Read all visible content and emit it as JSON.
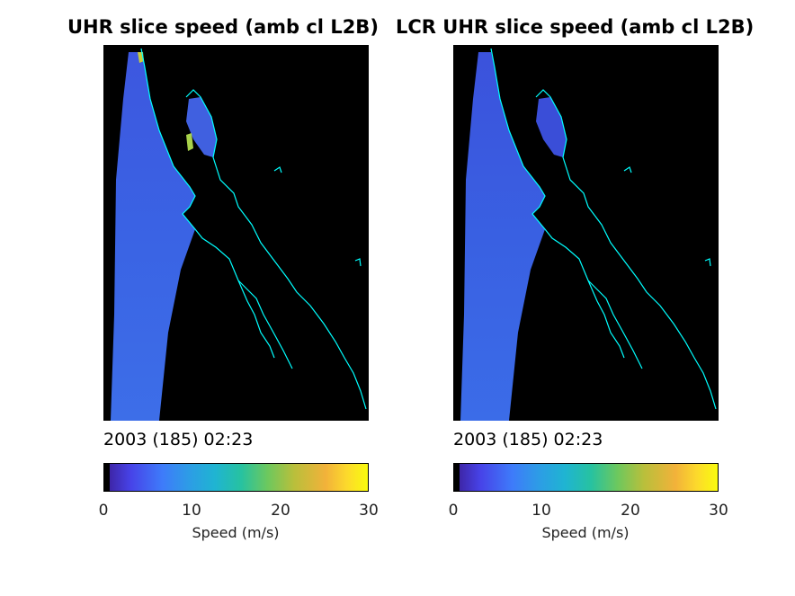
{
  "chart_data": [
    {
      "type": "heatmap",
      "title": "UHR slice speed (amb cl L2B)",
      "timestamp": "2003 (185) 02:23",
      "colorbar": {
        "label": "Speed (m/s)",
        "range": [
          0,
          30
        ],
        "ticks": [
          "0",
          "10",
          "20",
          "30"
        ],
        "colormap": "parula"
      },
      "typical_speed": 6,
      "colors": {
        "land": "#000000",
        "coastline": "#00ffff",
        "swath": "#3a5fe0"
      }
    },
    {
      "type": "heatmap",
      "title": "LCR UHR slice speed (amb cl L2B)",
      "timestamp": "2003 (185) 02:23",
      "colorbar": {
        "label": "Speed (m/s)",
        "range": [
          0,
          30
        ],
        "ticks": [
          "0",
          "10",
          "20",
          "30"
        ],
        "colormap": "parula"
      },
      "typical_speed": 5,
      "colors": {
        "land": "#000000",
        "coastline": "#00ffff",
        "swath": "#3a5fe0"
      }
    }
  ]
}
